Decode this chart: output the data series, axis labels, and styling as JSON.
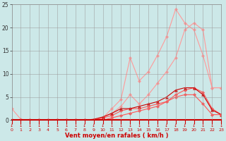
{
  "x": [
    0,
    1,
    2,
    3,
    4,
    5,
    6,
    7,
    8,
    9,
    10,
    11,
    12,
    13,
    14,
    15,
    16,
    17,
    18,
    19,
    20,
    21,
    22,
    23
  ],
  "rafale1": [
    0.0,
    0.0,
    0.1,
    0.1,
    0.1,
    0.1,
    0.1,
    0.1,
    0.1,
    0.1,
    0.5,
    1.5,
    3.0,
    5.5,
    3.5,
    5.5,
    8.0,
    10.5,
    13.5,
    19.5,
    21.0,
    19.5,
    7.0,
    7.0
  ],
  "rafale2": [
    2.5,
    0.2,
    0.0,
    0.0,
    0.0,
    0.0,
    0.0,
    0.0,
    0.0,
    0.0,
    0.5,
    2.5,
    4.5,
    13.5,
    8.5,
    10.5,
    14.0,
    18.0,
    24.0,
    21.0,
    19.5,
    14.0,
    7.0,
    7.0
  ],
  "moyen1": [
    0.0,
    0.0,
    0.0,
    0.0,
    0.0,
    0.0,
    0.0,
    0.0,
    0.0,
    0.0,
    0.5,
    1.0,
    2.0,
    2.5,
    2.5,
    3.0,
    3.5,
    4.0,
    5.5,
    6.5,
    7.0,
    6.0,
    2.5,
    1.2
  ],
  "moyen2": [
    0.0,
    0.0,
    0.0,
    0.0,
    0.0,
    0.0,
    0.0,
    0.0,
    0.0,
    0.2,
    0.7,
    1.5,
    2.5,
    2.5,
    3.0,
    3.5,
    4.0,
    5.0,
    6.5,
    7.0,
    7.0,
    5.5,
    2.2,
    1.2
  ],
  "moyen3": [
    0.0,
    0.0,
    0.0,
    0.0,
    0.0,
    0.0,
    0.0,
    0.0,
    0.0,
    0.0,
    0.0,
    0.5,
    1.0,
    1.5,
    2.0,
    2.5,
    3.0,
    4.0,
    5.0,
    5.5,
    5.5,
    3.5,
    1.2,
    1.2
  ],
  "bg_color": "#cce8e8",
  "grid_color": "#999999",
  "color_light_pink": "#ff9999",
  "color_mid_red": "#ff5555",
  "color_dark_red": "#cc0000",
  "xlabel": "Vent moyen/en rafales ( km/h )",
  "ylim": [
    0,
    25
  ],
  "xlim": [
    0,
    23
  ],
  "yticks": [
    0,
    5,
    10,
    15,
    20,
    25
  ],
  "xticks": [
    0,
    1,
    2,
    3,
    4,
    5,
    6,
    7,
    8,
    9,
    10,
    11,
    12,
    13,
    14,
    15,
    16,
    17,
    18,
    19,
    20,
    21,
    22,
    23
  ]
}
